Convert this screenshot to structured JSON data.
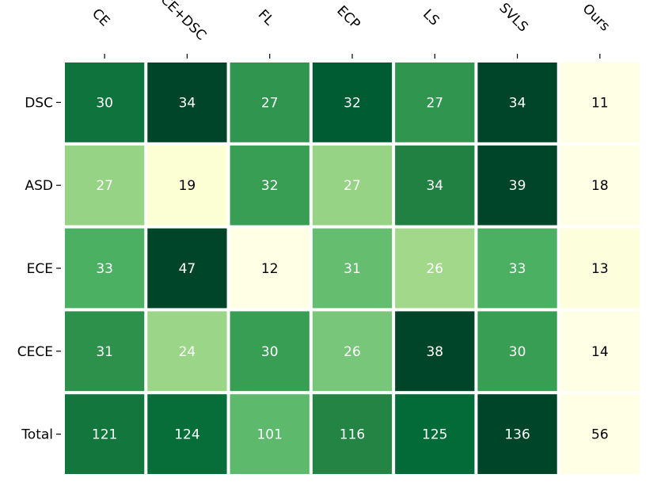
{
  "chart_data": {
    "type": "heatmap",
    "columns": [
      "CE",
      "CE+DSC",
      "FL",
      "ECP",
      "LS",
      "SVLS",
      "Ours"
    ],
    "rows": [
      "DSC",
      "ASD",
      "ECE",
      "CECE",
      "Total"
    ],
    "values": [
      [
        30,
        34,
        27,
        32,
        27,
        34,
        11
      ],
      [
        27,
        19,
        32,
        27,
        34,
        39,
        18
      ],
      [
        33,
        47,
        12,
        31,
        26,
        33,
        13
      ],
      [
        31,
        24,
        30,
        26,
        38,
        30,
        14
      ],
      [
        121,
        124,
        101,
        116,
        125,
        136,
        56
      ]
    ],
    "colormap": "YlGn",
    "scale": "per-row",
    "grid": false,
    "colors": {
      "ramp": [
        "#ffffe5",
        "#f7fcb9",
        "#d9f0a3",
        "#addd8e",
        "#78c679",
        "#41ab5d",
        "#238443",
        "#006837",
        "#004529"
      ],
      "text_light": "#ffffff",
      "text_dark": "#000000",
      "cell_gap": "#ffffff"
    }
  }
}
